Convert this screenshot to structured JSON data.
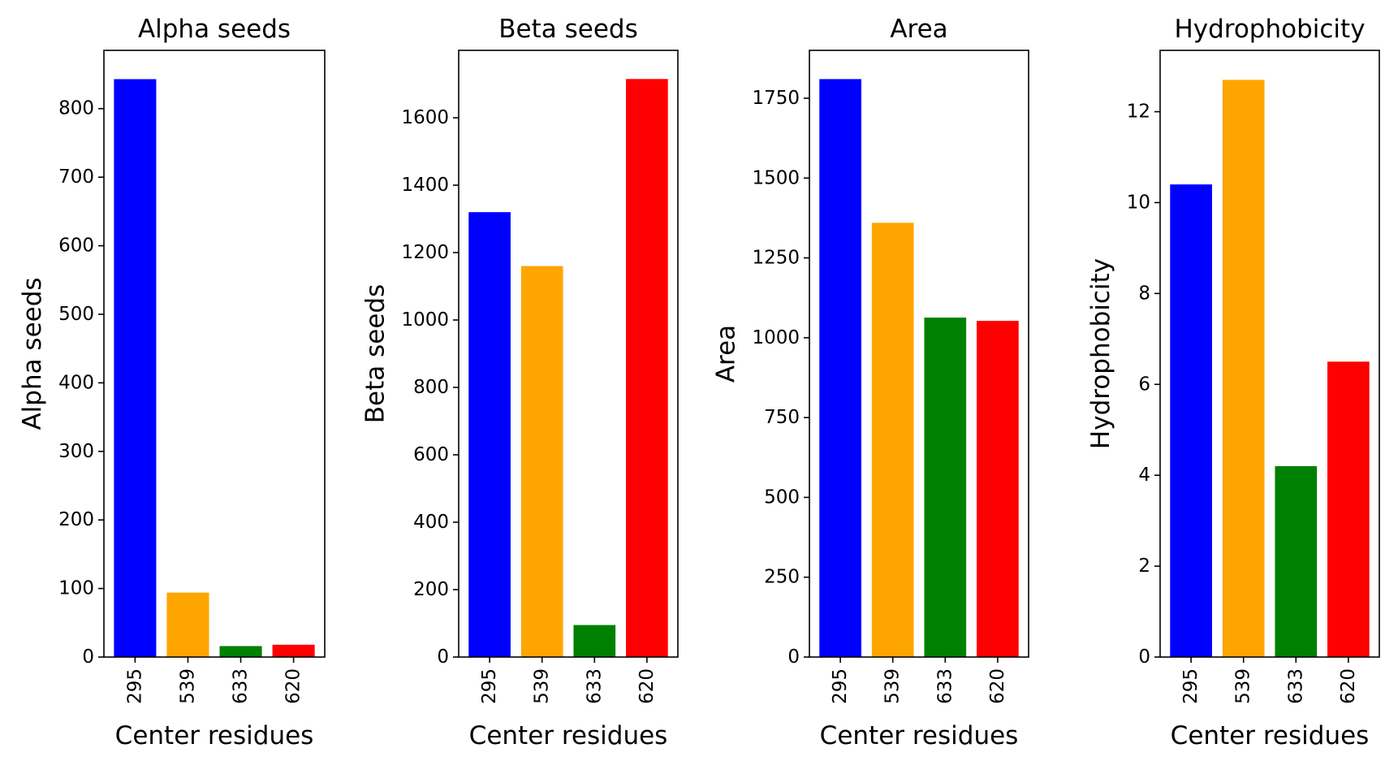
{
  "chart_data": [
    {
      "type": "bar",
      "title": "Alpha seeds",
      "xlabel": "Center residues",
      "ylabel": "Alpha seeds",
      "categories": [
        "295",
        "539",
        "633",
        "620"
      ],
      "values": [
        843,
        94,
        16,
        18
      ],
      "colors": [
        "#0000ff",
        "#ffa500",
        "#008000",
        "#ff0000"
      ],
      "ylim": [
        0,
        885
      ],
      "yticks": [
        0,
        100,
        200,
        300,
        400,
        500,
        600,
        700,
        800
      ],
      "grid": false
    },
    {
      "type": "bar",
      "title": "Beta seeds",
      "xlabel": "Center residues",
      "ylabel": "Beta seeds",
      "categories": [
        "295",
        "539",
        "633",
        "620"
      ],
      "values": [
        1320,
        1160,
        95,
        1715
      ],
      "colors": [
        "#0000ff",
        "#ffa500",
        "#008000",
        "#ff0000"
      ],
      "ylim": [
        0,
        1800
      ],
      "yticks": [
        0,
        200,
        400,
        600,
        800,
        1000,
        1200,
        1400,
        1600
      ],
      "grid": false
    },
    {
      "type": "bar",
      "title": "Area",
      "xlabel": "Center residues",
      "ylabel": "Area",
      "categories": [
        "295",
        "539",
        "633",
        "620"
      ],
      "values": [
        1810,
        1360,
        1063,
        1053
      ],
      "colors": [
        "#0000ff",
        "#ffa500",
        "#008000",
        "#ff0000"
      ],
      "ylim": [
        0,
        1900
      ],
      "yticks": [
        0,
        250,
        500,
        750,
        1000,
        1250,
        1500,
        1750
      ],
      "grid": false
    },
    {
      "type": "bar",
      "title": "Hydrophobicity",
      "xlabel": "Center residues",
      "ylabel": "Hydrophobicity",
      "categories": [
        "295",
        "539",
        "633",
        "620"
      ],
      "values": [
        10.4,
        12.7,
        4.2,
        6.5
      ],
      "colors": [
        "#0000ff",
        "#ffa500",
        "#008000",
        "#ff0000"
      ],
      "ylim": [
        0,
        13.35
      ],
      "yticks": [
        0,
        2,
        4,
        6,
        8,
        10,
        12
      ],
      "grid": false
    }
  ]
}
